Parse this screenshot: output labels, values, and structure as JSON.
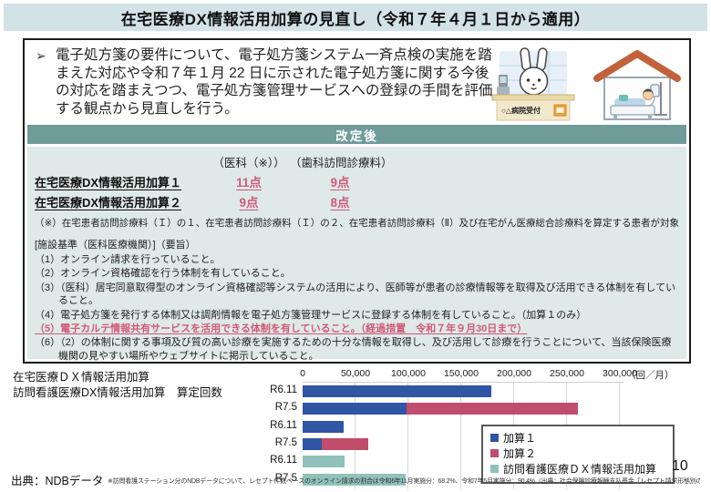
{
  "title": "在宅医療DX情報活用加算の見直し（令和７年４月１日から適用）",
  "intro": {
    "bullet": "➢",
    "text": "電子処方箋の要件について、電子処方箋システム一斉点検の実施を踏まえた対応や令和７年１月 22 日に示された電子処方箋に関する今後の対応を踏まえつつ、電子処方箋管理サービスへの登録の手間を評価する観点から見直しを行う。"
  },
  "illustrations": {
    "reception_sign": "○△病院受付"
  },
  "revision": {
    "header_label": "改定後"
  },
  "points_table": {
    "col_headers": [
      "（医科（※））",
      "（歯科訪問診療料）"
    ],
    "rows": [
      {
        "label": "在宅医療DX情報活用加算１",
        "values": [
          "11点",
          "9点"
        ]
      },
      {
        "label": "在宅医療DX情報活用加算２",
        "values": [
          "9点",
          "8点"
        ]
      }
    ]
  },
  "notes": {
    "asterisk": "（※）在宅患者訪問診療料（Ｉ）の１、在宅患者訪問診療料（Ｉ）の２、在宅患者訪問診療料（Ⅱ）及び在宅がん医療総合診療料を算定する患者が対象",
    "criteria_header": "[施設基準（医科医療機関）]（要旨）",
    "criteria": [
      {
        "text": "（1）オンライン請求を行っていること。",
        "highlight": false
      },
      {
        "text": "（2）オンライン資格確認を行う体制を有していること。",
        "highlight": false
      },
      {
        "text": "（3）（医科）居宅同意取得型のオンライン資格確認等システムの活用により、医師等が患者の診療情報等を取得及び活用できる体制を有していること。",
        "highlight": false
      },
      {
        "text": "（4）電子処方箋を発行する体制又は調剤情報を電子処方箋管理サービスに登録する体制を有していること。（加算１のみ）",
        "highlight": false
      },
      {
        "text": "（5）電子カルテ情報共有サービスを活用できる体制を有していること。（経過措置　令和７年９月30日まで）",
        "highlight": true
      },
      {
        "text": "（6）（2）の体制に関する事項及び質の高い診療を実施するための十分な情報を取得し、及び活用して診療を行うことについて、当該保険医療機関の見やすい場所やウェブサイトに掲示していること。",
        "highlight": false
      }
    ]
  },
  "chart_data": {
    "type": "bar",
    "orientation": "horizontal-stacked",
    "title_lines": [
      "在宅医療ＤＸ情報活用加算",
      "訪問看護医療DX情報活用加算　算定回数"
    ],
    "unit_label": "（回／月）",
    "x_ticks": [
      "0",
      "50,000",
      "100,000",
      "150,000",
      "200,000",
      "250,000",
      "300,000"
    ],
    "xlim": [
      0,
      300000
    ],
    "grid": true,
    "legend_position": "right-inside",
    "series": [
      {
        "name": "加算１",
        "color_key": "series_blue"
      },
      {
        "name": "加算２",
        "color_key": "series_red"
      },
      {
        "name": "訪問看護医療ＤＸ情報活用加算",
        "color_key": "series_teal"
      }
    ],
    "rows": [
      {
        "category": "R6.11",
        "segments": [
          {
            "series": 0,
            "value": 178000
          }
        ]
      },
      {
        "category": "R7.5",
        "segments": [
          {
            "series": 0,
            "value": 98000
          },
          {
            "series": 1,
            "value": 162000
          }
        ]
      },
      {
        "category": "R6.11",
        "segments": [
          {
            "series": 0,
            "value": 39000
          }
        ]
      },
      {
        "category": "R7.5",
        "segments": [
          {
            "series": 0,
            "value": 18000
          },
          {
            "series": 1,
            "value": 44000
          }
        ]
      },
      {
        "category": "R6.11",
        "segments": [
          {
            "series": 2,
            "value": 40000
          }
        ]
      },
      {
        "category": "R7.5",
        "segments": [
          {
            "series": 2,
            "value": 97000
          }
        ]
      }
    ]
  },
  "footer": {
    "source": "出典：NDBデータ",
    "note": "※訪問看護ステーション分のNDBデータについて、レセプト件数ベースのオンライン請求の割合は令和6年11月実施分：68.2%、令和7年5月実施分：90.4%（出典：社会保険診療報酬支払基金「レセプト請求形態別の請求状況」）",
    "page_number": "10"
  },
  "colors": {
    "banner_bg": "#d2e2e6",
    "revision_bar_bg": "#6f9b99",
    "panel_bg": "#dfe9e7",
    "accent_pink": "#cf5a7b",
    "series_blue": "#2f55a4",
    "series_red": "#c14d6d",
    "series_teal": "#90c1ba"
  }
}
